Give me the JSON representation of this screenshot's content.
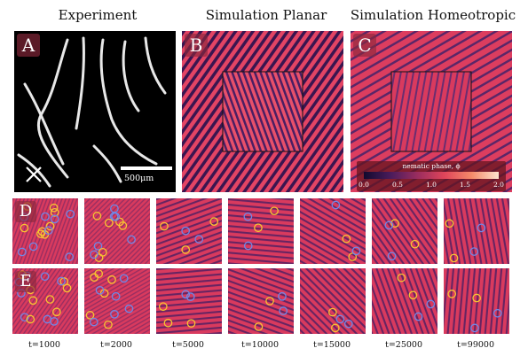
{
  "titles": {
    "experiment": "Experiment",
    "planar": "Simulation Planar",
    "homeotropic": "Simulation Homeotropic"
  },
  "letters": {
    "a": "A",
    "b": "B",
    "c": "C",
    "d": "D",
    "e": "E"
  },
  "scale_bar_label": "500μm",
  "colorbar": {
    "label": "nematic phase, ϕ",
    "ticks": [
      "0.0",
      "0.5",
      "1.0",
      "1.5",
      "2.0"
    ],
    "colors": [
      "#120a2e",
      "#4a1c5c",
      "#9b2d5f",
      "#e0455a",
      "#f48b6a",
      "#fde3cf"
    ]
  },
  "time_labels": [
    "t=1000",
    "t=2000",
    "t=5000",
    "t=10000",
    "t=15000",
    "t=25000",
    "t=99000"
  ],
  "colors": {
    "background_pattern": "#d93a5e",
    "stripe": "#4b1e63",
    "defect_yellow": "#f7c531",
    "defect_blue": "#6f88e8"
  }
}
